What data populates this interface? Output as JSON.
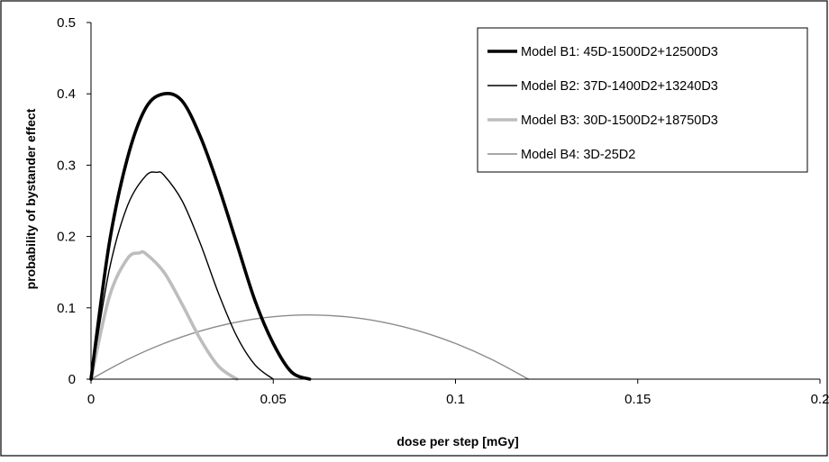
{
  "chart_data": {
    "type": "line",
    "title": "",
    "xlabel": "dose per step [mGy]",
    "ylabel": "probability of bystander effect",
    "xlim": [
      0,
      0.2
    ],
    "ylim": [
      0,
      0.5
    ],
    "x_ticks": [
      "0",
      "0.05",
      "0.1",
      "0.15",
      "0.2"
    ],
    "y_ticks": [
      "0",
      "0.1",
      "0.2",
      "0.3",
      "0.4",
      "0.5"
    ],
    "grid": false,
    "legend_position": "top-right",
    "series": [
      {
        "name": "Model B1: 45D-1500D2+12500D3",
        "color": "#000000",
        "line_weight": "thick",
        "x": [
          0,
          0.005,
          0.01,
          0.015,
          0.02,
          0.025,
          0.03,
          0.035,
          0.04,
          0.045,
          0.05,
          0.055,
          0.06
        ],
        "y": [
          0,
          0.19,
          0.31,
          0.38,
          0.4,
          0.39,
          0.34,
          0.27,
          0.19,
          0.11,
          0.05,
          0.01,
          0
        ]
      },
      {
        "name": "Model B2: 37D-1400D2+13240D3",
        "color": "#000000",
        "line_weight": "thin",
        "x": [
          0,
          0.005,
          0.01,
          0.015,
          0.018,
          0.02,
          0.025,
          0.03,
          0.035,
          0.04,
          0.045,
          0.05
        ],
        "y": [
          0,
          0.153,
          0.243,
          0.285,
          0.29,
          0.286,
          0.25,
          0.19,
          0.12,
          0.06,
          0.02,
          0
        ]
      },
      {
        "name": "Model B3: 30D-1500D2+18750D3",
        "color": "#bdbdbd",
        "line_weight": "thick",
        "x": [
          0,
          0.005,
          0.01,
          0.0133,
          0.015,
          0.02,
          0.025,
          0.03,
          0.035,
          0.04
        ],
        "y": [
          0,
          0.115,
          0.169,
          0.177,
          0.176,
          0.15,
          0.105,
          0.056,
          0.018,
          0
        ]
      },
      {
        "name": "Model B4: 3D-25D2",
        "color": "#8c8c8c",
        "line_weight": "thin",
        "x": [
          0,
          0.01,
          0.02,
          0.03,
          0.04,
          0.05,
          0.06,
          0.07,
          0.08,
          0.09,
          0.1,
          0.11,
          0.12
        ],
        "y": [
          0,
          0.0275,
          0.05,
          0.0675,
          0.08,
          0.0875,
          0.09,
          0.0875,
          0.08,
          0.0675,
          0.05,
          0.0275,
          0
        ]
      }
    ]
  }
}
